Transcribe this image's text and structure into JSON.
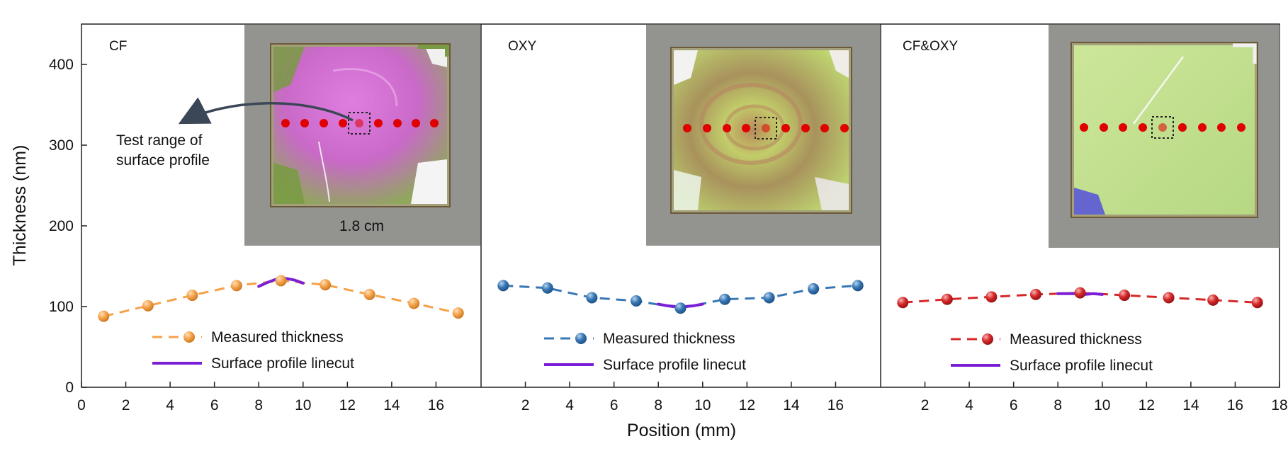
{
  "figure": {
    "ylabel": "Thickness (nm)",
    "xlabel": "Position (mm)"
  },
  "panels": [
    {
      "label": "CF",
      "photo_theme": "magenta-green",
      "annotation": [
        "Test range of",
        "surface profile"
      ],
      "scale_label": "1.8 cm"
    },
    {
      "label": "OXY",
      "photo_theme": "green-swirl"
    },
    {
      "label": "CF&OXY",
      "photo_theme": "green-uniform"
    }
  ],
  "legend": {
    "measured": "Measured thickness",
    "profile": "Surface profile linecut"
  },
  "colors": {
    "cf": "#f5a24a",
    "oxy": "#3677b4",
    "cfoxy": "#d62728",
    "profile": "#7b1fd6",
    "dots": "#e00000"
  },
  "chart_data": [
    {
      "type": "line",
      "title": "CF",
      "xlabel": "Position (mm)",
      "ylabel": "Thickness (nm)",
      "xlim": [
        0,
        17.7
      ],
      "ylim": [
        0,
        450
      ],
      "xticks": [
        0,
        2,
        4,
        6,
        8,
        10,
        12,
        14,
        16
      ],
      "yticks": [
        0,
        100,
        200,
        300,
        400
      ],
      "series": [
        {
          "name": "Measured thickness",
          "style": "dashed-markers",
          "color": "#f5a24a",
          "x": [
            1,
            3,
            5,
            7,
            9,
            11,
            13,
            15,
            17
          ],
          "y": [
            88,
            101,
            114,
            126,
            132,
            127,
            115,
            104,
            92
          ]
        },
        {
          "name": "Surface profile linecut",
          "style": "solid",
          "color": "#7b1fd6",
          "x": [
            8.0,
            8.4,
            8.8,
            9.2,
            9.6,
            10.0
          ],
          "y": [
            125,
            130,
            134,
            135,
            133,
            129
          ]
        }
      ]
    },
    {
      "type": "line",
      "title": "OXY",
      "xlabel": "Position (mm)",
      "ylabel": "Thickness (nm)",
      "xlim": [
        0,
        17.7
      ],
      "ylim": [
        0,
        450
      ],
      "xticks": [
        2,
        4,
        6,
        8,
        10,
        12,
        14,
        16
      ],
      "series": [
        {
          "name": "Measured thickness",
          "style": "dashed-markers",
          "color": "#3677b4",
          "x": [
            1,
            3,
            5,
            7,
            9,
            11,
            13,
            15,
            17
          ],
          "y": [
            126,
            123,
            111,
            107,
            98,
            109,
            111,
            122,
            126
          ]
        },
        {
          "name": "Surface profile linecut",
          "style": "solid",
          "color": "#7b1fd6",
          "x": [
            8.0,
            8.4,
            8.8,
            9.2,
            9.6,
            10.0
          ],
          "y": [
            103,
            101,
            100,
            100,
            101,
            103
          ]
        }
      ]
    },
    {
      "type": "line",
      "title": "CF&OXY",
      "xlabel": "Position (mm)",
      "ylabel": "Thickness (nm)",
      "xlim": [
        0,
        18
      ],
      "ylim": [
        0,
        450
      ],
      "xticks": [
        2,
        4,
        6,
        8,
        10,
        12,
        14,
        16,
        18
      ],
      "series": [
        {
          "name": "Measured thickness",
          "style": "dashed-markers",
          "color": "#d62728",
          "x": [
            1,
            3,
            5,
            7,
            9,
            11,
            13,
            15,
            17
          ],
          "y": [
            105,
            109,
            112,
            115,
            117,
            114,
            111,
            108,
            105
          ]
        },
        {
          "name": "Surface profile linecut",
          "style": "solid",
          "color": "#7b1fd6",
          "x": [
            8.0,
            8.4,
            8.8,
            9.2,
            9.6,
            10.0
          ],
          "y": [
            116,
            116,
            116,
            115,
            116,
            115
          ]
        }
      ]
    }
  ]
}
